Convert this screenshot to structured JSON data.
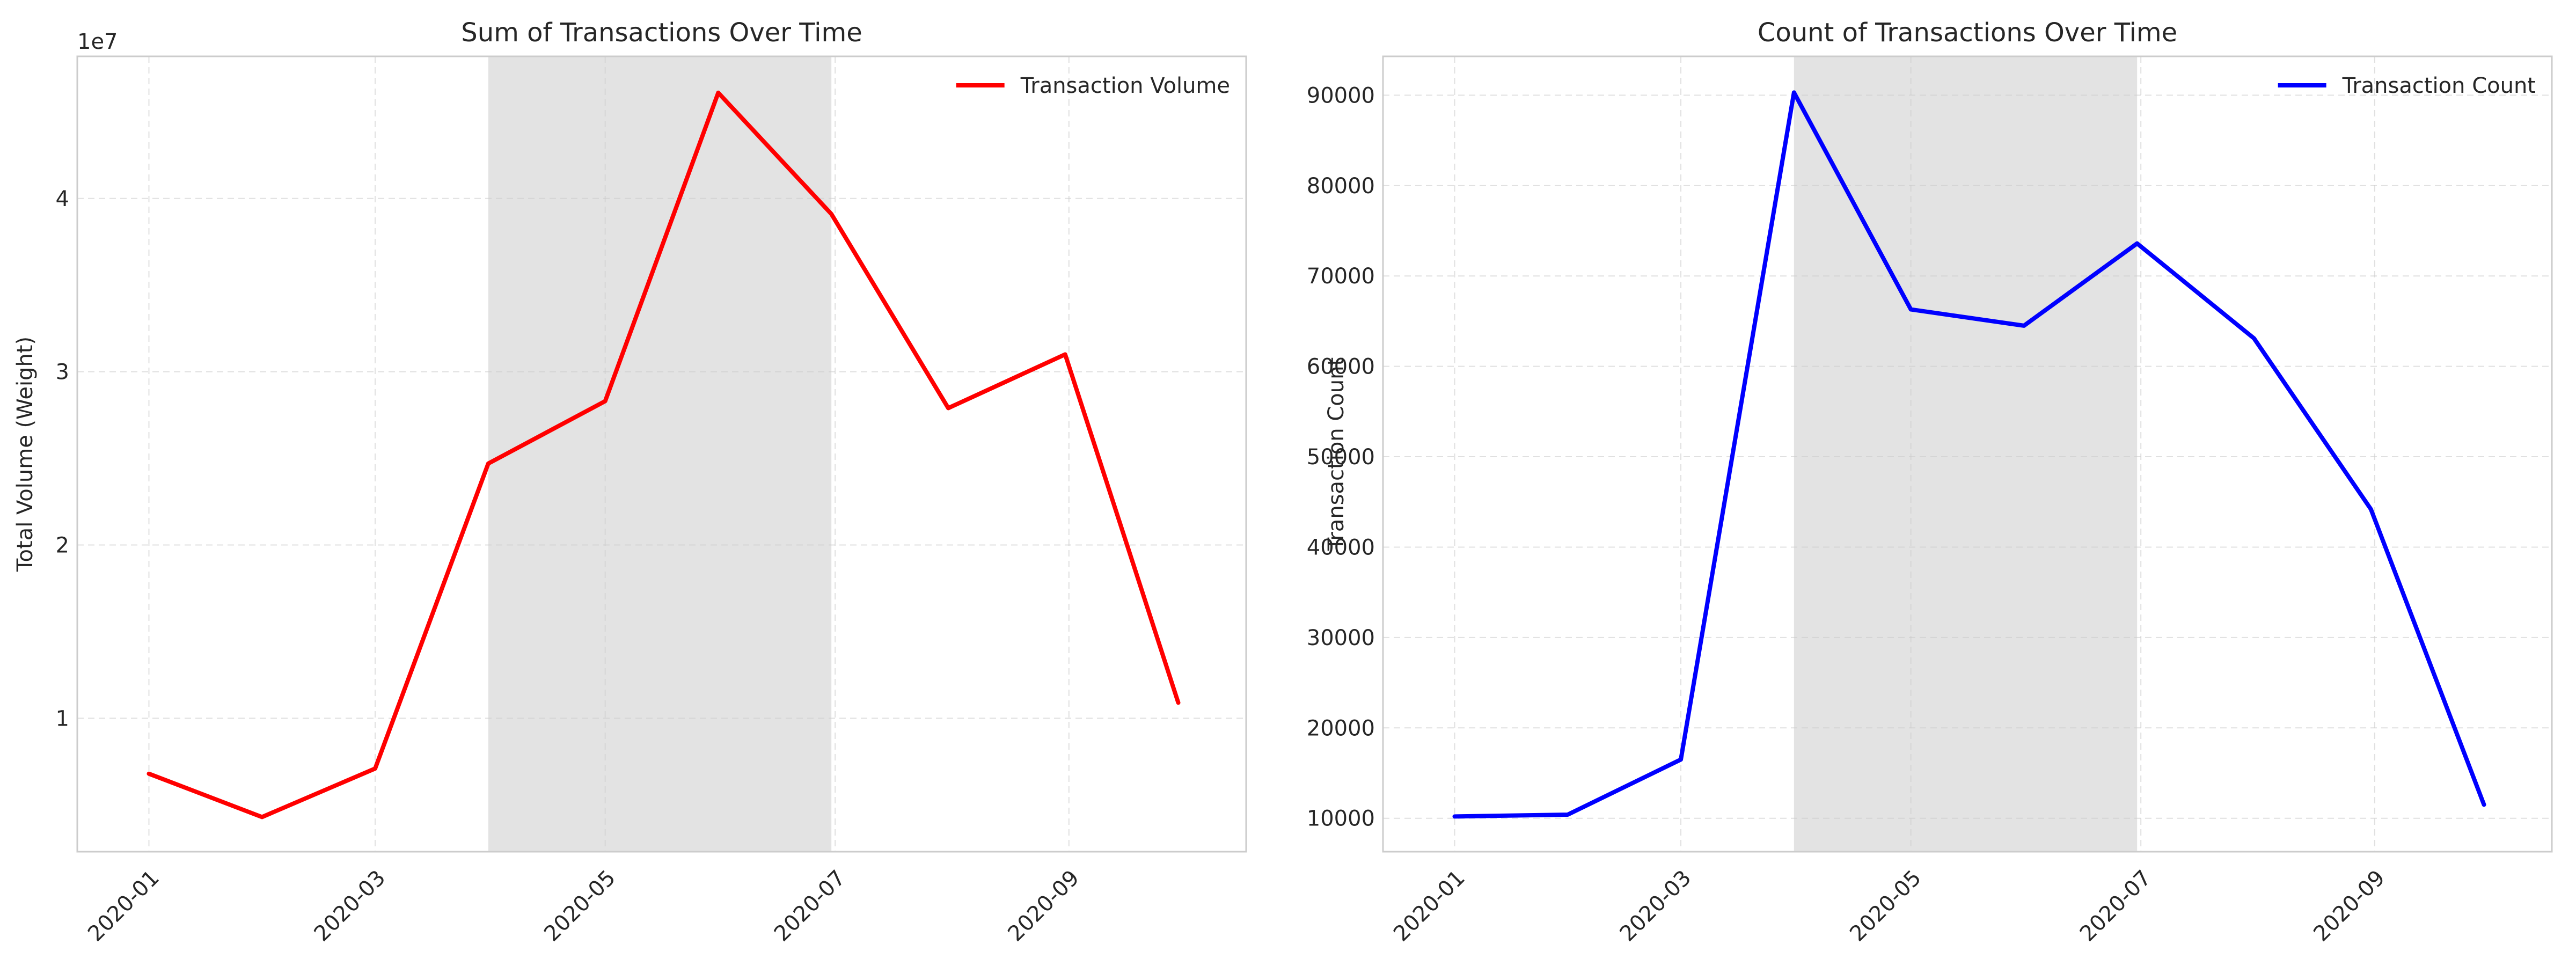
{
  "chart_data": [
    {
      "type": "line",
      "title": "Sum of Transactions Over Time",
      "xlabel": "",
      "ylabel": "Total Volume (Weight)",
      "y_offset_label": "1e7",
      "x": [
        "2020-01-01",
        "2020-01-31",
        "2020-03-01",
        "2020-03-31",
        "2020-05-01",
        "2020-05-31",
        "2020-06-30",
        "2020-07-31",
        "2020-08-31",
        "2020-09-30"
      ],
      "x_ticks": [
        "2020-01",
        "2020-03",
        "2020-05",
        "2020-07",
        "2020-09"
      ],
      "y_ticks": [
        1,
        2,
        3,
        4
      ],
      "ylim": [
        0.23,
        4.82
      ],
      "y_scale": 10000000,
      "series": [
        {
          "name": "Transaction Volume",
          "color": "#ff0000",
          "values": [
            0.68,
            0.43,
            0.71,
            2.47,
            2.83,
            4.61,
            3.91,
            2.79,
            3.1,
            1.09
          ]
        }
      ],
      "shaded_region": {
        "x_start": "2020-03-31",
        "x_end": "2020-06-30",
        "color": "#808080"
      },
      "grid": true,
      "legend_position": "top-right"
    },
    {
      "type": "line",
      "title": "Count of Transactions Over Time",
      "xlabel": "",
      "ylabel": "Transaction Count",
      "x": [
        "2020-01-01",
        "2020-01-31",
        "2020-03-01",
        "2020-03-31",
        "2020-05-01",
        "2020-05-31",
        "2020-06-30",
        "2020-07-31",
        "2020-08-31",
        "2020-09-30"
      ],
      "x_ticks": [
        "2020-01",
        "2020-03",
        "2020-05",
        "2020-07",
        "2020-09"
      ],
      "y_ticks": [
        10000,
        20000,
        30000,
        40000,
        50000,
        60000,
        70000,
        80000,
        90000
      ],
      "ylim": [
        6300,
        94300
      ],
      "series": [
        {
          "name": "Transaction Count",
          "color": "#0000ff",
          "values": [
            10200,
            10400,
            16500,
            90300,
            66300,
            64500,
            73600,
            63100,
            44200,
            11500
          ]
        }
      ],
      "shaded_region": {
        "x_start": "2020-03-31",
        "x_end": "2020-06-30",
        "color": "#808080"
      },
      "grid": true,
      "legend_position": "top-right"
    }
  ]
}
